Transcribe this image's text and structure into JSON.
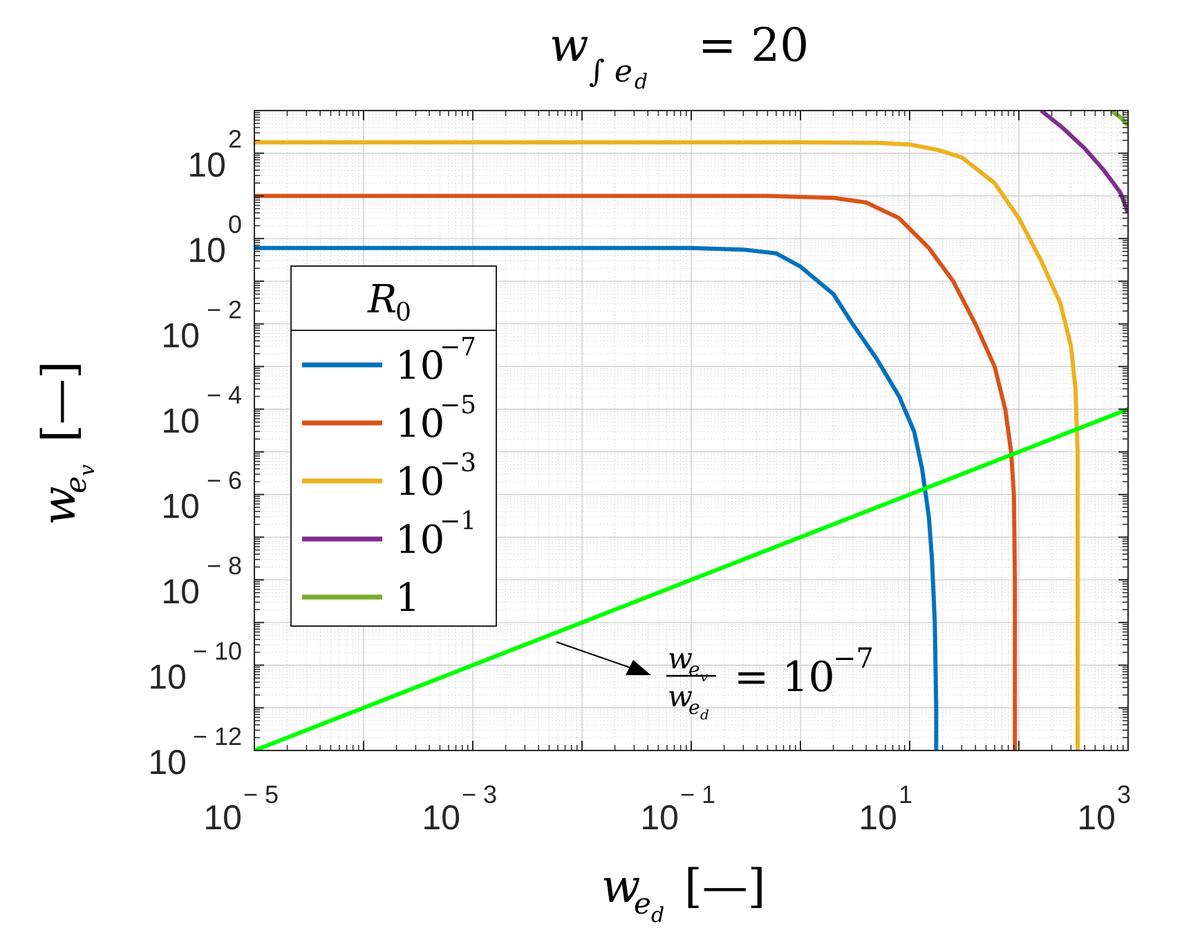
{
  "title": {
    "lhs_var": "w",
    "lhs_sub": "∫ e",
    "lhs_subsub": "d",
    "rhs": "= 20"
  },
  "xlabel": {
    "var": "w",
    "sub": "e",
    "subsub": "d",
    "unit": "[—]"
  },
  "ylabel": {
    "var": "w",
    "sub": "e",
    "subsub": "v",
    "unit": "[—]"
  },
  "legend": {
    "title": "R",
    "title_sub": "0",
    "entries": [
      {
        "base": "10",
        "exp": "−7"
      },
      {
        "base": "10",
        "exp": "−5"
      },
      {
        "base": "10",
        "exp": "−3"
      },
      {
        "base": "10",
        "exp": "−1"
      },
      {
        "base": "1",
        "exp": ""
      }
    ]
  },
  "annotation": {
    "num_var": "w",
    "num_sub": "e",
    "num_subsub": "v",
    "den_var": "w",
    "den_sub": "e",
    "den_subsub": "d",
    "rhs_base": "= 10",
    "rhs_exp": "−7"
  },
  "x_ticks": [
    {
      "base": "10",
      "exp": "− 5"
    },
    {
      "base": "10",
      "exp": "− 3"
    },
    {
      "base": "10",
      "exp": "− 1"
    },
    {
      "base": "10",
      "exp": "1"
    },
    {
      "base": "10",
      "exp": "3"
    }
  ],
  "y_ticks": [
    {
      "base": "10",
      "exp": "− 12"
    },
    {
      "base": "10",
      "exp": "− 10"
    },
    {
      "base": "10",
      "exp": "− 8"
    },
    {
      "base": "10",
      "exp": "− 6"
    },
    {
      "base": "10",
      "exp": "− 4"
    },
    {
      "base": "10",
      "exp": "− 2"
    },
    {
      "base": "10",
      "exp": "0"
    },
    {
      "base": "10",
      "exp": "2"
    }
  ],
  "chart_data": {
    "type": "line",
    "title": "w_{∫ e_d} = 20",
    "xlabel": "w_{e_d} [—]",
    "ylabel": "w_{e_v} [—]",
    "xscale": "log",
    "yscale": "log",
    "xlim": [
      1e-05,
      1000
    ],
    "ylim": [
      1e-12,
      1000
    ],
    "grid": true,
    "legend_title": "R_0",
    "legend_position": "left",
    "series": [
      {
        "name": "10^{-7}",
        "color": "#0072BD",
        "x": [
          1e-05,
          0.1,
          0.3,
          0.6,
          1,
          2,
          3,
          5,
          8,
          11,
          13,
          15,
          16,
          17,
          17.5,
          17.5
        ],
        "y": [
          0.6,
          0.6,
          0.55,
          0.45,
          0.22,
          0.05,
          0.01,
          0.0015,
          0.0002,
          3e-05,
          4e-06,
          3e-07,
          3e-08,
          1e-09,
          1e-11,
          1e-12
        ]
      },
      {
        "name": "10^{-5}",
        "color": "#D95319",
        "x": [
          1e-05,
          0.5,
          2,
          4,
          8,
          15,
          25,
          40,
          60,
          75,
          85,
          90,
          92,
          92,
          92
        ],
        "y": [
          10,
          10,
          9,
          7,
          3,
          0.6,
          0.1,
          0.01,
          0.001,
          0.0001,
          1e-05,
          1e-06,
          1e-08,
          1e-10,
          1e-12
        ]
      },
      {
        "name": "10^{-3}",
        "color": "#EDB120",
        "x": [
          1e-05,
          1,
          5,
          10,
          18,
          30,
          60,
          100,
          160,
          240,
          300,
          330,
          345,
          345,
          345
        ],
        "y": [
          180,
          180,
          175,
          160,
          120,
          80,
          20,
          3,
          0.3,
          0.03,
          0.003,
          0.0003,
          1e-05,
          1e-08,
          1e-12
        ]
      },
      {
        "name": "10^{-1}",
        "color": "#7E2F8E",
        "x": [
          160,
          250,
          400,
          600,
          850,
          1000
        ],
        "y": [
          1000,
          400,
          130,
          40,
          12,
          4
        ]
      },
      {
        "name": "1",
        "color": "#77AC30",
        "x": [
          700,
          850,
          1000
        ],
        "y": [
          1000,
          700,
          450
        ]
      },
      {
        "name": "w_{e_v}/w_{e_d} = 10^{-7}",
        "color": "#00FF00",
        "x": [
          1e-05,
          1000
        ],
        "y": [
          1e-12,
          0.0001
        ]
      }
    ]
  }
}
